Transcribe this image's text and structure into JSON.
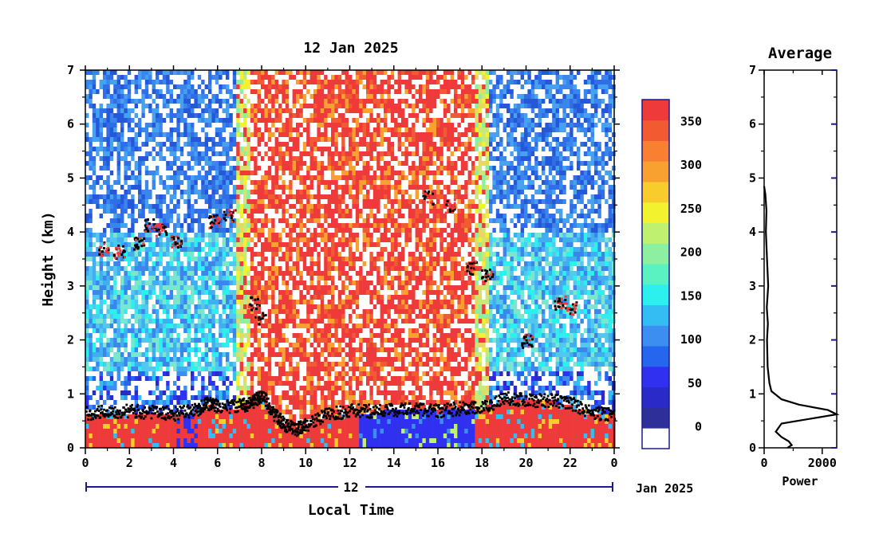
{
  "chart_data": [
    {
      "type": "heatmap",
      "title": "12 Jan 2025",
      "xlabel": "Local Time",
      "ylabel": "Height (km)",
      "x_ticks": [
        "0",
        "2",
        "4",
        "6",
        "8",
        "10",
        "12",
        "14",
        "16",
        "18",
        "20",
        "22",
        "0"
      ],
      "y_ticks": [
        "0",
        "1",
        "2",
        "3",
        "4",
        "5",
        "6",
        "7"
      ],
      "xlim": [
        0,
        24
      ],
      "ylim": [
        0,
        7
      ],
      "date_axis": {
        "day": "12",
        "month_year": "Jan 2025"
      },
      "colorbar": {
        "tick_labels": [
          "0",
          "50",
          "100",
          "150",
          "200",
          "250",
          "300",
          "350"
        ],
        "colors": [
          "#ffffff",
          "#2f2f9a",
          "#2a2ac8",
          "#3030f0",
          "#2466ee",
          "#3c8ef0",
          "#33bdf2",
          "#2cf0ee",
          "#5af2c0",
          "#8cf0a0",
          "#c0f070",
          "#f2f22e",
          "#f8cc2c",
          "#f8a030",
          "#f88030",
          "#f25a32",
          "#ee3a3a"
        ],
        "vmin": -25,
        "vmax": 375
      },
      "regimes": [
        {
          "x0": 0.0,
          "x1": 2.8,
          "upper": "#2f6ee6",
          "mid": "#40aef0"
        },
        {
          "x0": 2.8,
          "x1": 6.8,
          "upper": "#3a86ec",
          "mid": "#52c8ee"
        },
        {
          "x0": 6.8,
          "x1": 7.4,
          "upper": "#e8d860",
          "mid": "#c8e87a"
        },
        {
          "x0": 7.4,
          "x1": 17.6,
          "upper": "#ee3a3a",
          "mid": "#ee3a3a"
        },
        {
          "x0": 17.6,
          "x1": 18.2,
          "upper": "#e8d860",
          "mid": "#c8e87a"
        },
        {
          "x0": 18.2,
          "x1": 24.0,
          "upper": "#2f6ee6",
          "mid": "#46b6ee"
        }
      ],
      "boundary_layer_top_km": [
        {
          "x": 0,
          "y": 0.65
        },
        {
          "x": 1,
          "y": 0.7
        },
        {
          "x": 2,
          "y": 0.7
        },
        {
          "x": 3,
          "y": 0.68
        },
        {
          "x": 4,
          "y": 0.65
        },
        {
          "x": 5,
          "y": 0.72
        },
        {
          "x": 5.5,
          "y": 0.85
        },
        {
          "x": 6,
          "y": 0.78
        },
        {
          "x": 7,
          "y": 0.8
        },
        {
          "x": 7.5,
          "y": 0.85
        },
        {
          "x": 8,
          "y": 1.0
        },
        {
          "x": 8.5,
          "y": 0.65
        },
        {
          "x": 9,
          "y": 0.45
        },
        {
          "x": 9.5,
          "y": 0.35
        },
        {
          "x": 10,
          "y": 0.45
        },
        {
          "x": 11,
          "y": 0.65
        },
        {
          "x": 12,
          "y": 0.7
        },
        {
          "x": 13,
          "y": 0.7
        },
        {
          "x": 14,
          "y": 0.72
        },
        {
          "x": 15,
          "y": 0.75
        },
        {
          "x": 16,
          "y": 0.7
        },
        {
          "x": 17,
          "y": 0.75
        },
        {
          "x": 18,
          "y": 0.75
        },
        {
          "x": 19,
          "y": 0.95
        },
        {
          "x": 20,
          "y": 0.9
        },
        {
          "x": 21,
          "y": 0.9
        },
        {
          "x": 22,
          "y": 0.85
        },
        {
          "x": 23,
          "y": 0.65
        },
        {
          "x": 24,
          "y": 0.65
        }
      ],
      "cloud_echoes_km": [
        {
          "x": 0.8,
          "y": 3.7
        },
        {
          "x": 1.5,
          "y": 3.65
        },
        {
          "x": 2.4,
          "y": 3.8
        },
        {
          "x": 2.9,
          "y": 4.15
        },
        {
          "x": 3.4,
          "y": 4.05
        },
        {
          "x": 4.1,
          "y": 3.85
        },
        {
          "x": 5.8,
          "y": 4.2
        },
        {
          "x": 6.5,
          "y": 4.3
        },
        {
          "x": 7.6,
          "y": 2.7
        },
        {
          "x": 7.9,
          "y": 2.4
        },
        {
          "x": 15.5,
          "y": 4.65
        },
        {
          "x": 16.5,
          "y": 4.5
        },
        {
          "x": 17.5,
          "y": 3.35
        },
        {
          "x": 18.2,
          "y": 3.2
        },
        {
          "x": 20,
          "y": 2.0
        },
        {
          "x": 21.5,
          "y": 2.7
        },
        {
          "x": 22.0,
          "y": 2.6
        }
      ]
    },
    {
      "type": "line",
      "title": "Average",
      "xlabel": "Power",
      "x_ticks": [
        "0",
        "2000"
      ],
      "y_ticks": [
        "0",
        "1",
        "2",
        "3",
        "4",
        "5",
        "6",
        "7"
      ],
      "xlim": [
        0,
        2500
      ],
      "ylim": [
        0,
        7
      ],
      "profile": [
        {
          "x": 800,
          "y": 0.0
        },
        {
          "x": 950,
          "y": 0.05
        },
        {
          "x": 850,
          "y": 0.12
        },
        {
          "x": 600,
          "y": 0.2
        },
        {
          "x": 400,
          "y": 0.3
        },
        {
          "x": 600,
          "y": 0.45
        },
        {
          "x": 2500,
          "y": 0.62
        },
        {
          "x": 2200,
          "y": 0.7
        },
        {
          "x": 1200,
          "y": 0.8
        },
        {
          "x": 600,
          "y": 0.9
        },
        {
          "x": 250,
          "y": 1.05
        },
        {
          "x": 180,
          "y": 1.2
        },
        {
          "x": 120,
          "y": 1.5
        },
        {
          "x": 100,
          "y": 2.0
        },
        {
          "x": 130,
          "y": 2.3
        },
        {
          "x": 90,
          "y": 2.6
        },
        {
          "x": 140,
          "y": 3.0
        },
        {
          "x": 100,
          "y": 3.5
        },
        {
          "x": 60,
          "y": 4.0
        },
        {
          "x": 80,
          "y": 4.4
        },
        {
          "x": 40,
          "y": 4.7
        },
        {
          "x": 0,
          "y": 4.85
        }
      ]
    }
  ]
}
